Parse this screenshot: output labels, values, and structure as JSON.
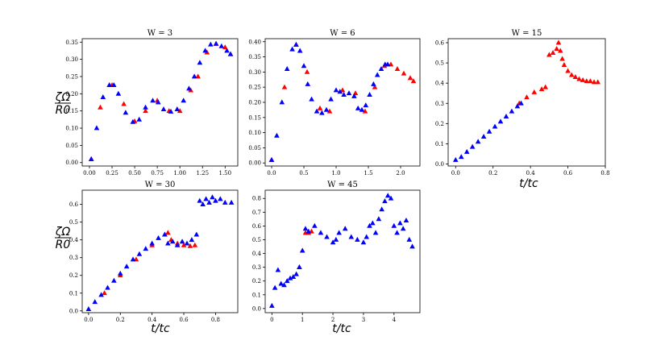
{
  "figure": {
    "ylabel_num": "ζΩ",
    "ylabel_den": "R0",
    "xlabel": "t/tc"
  },
  "chart_data": [
    {
      "type": "scatter",
      "title": "W = 3",
      "xlim": [
        -0.08,
        1.64
      ],
      "ylim": [
        -0.01,
        0.36
      ],
      "xticks": [
        0.0,
        0.25,
        0.5,
        0.75,
        1.0,
        1.25,
        1.5
      ],
      "xtick_labels": [
        "0.00",
        "0.25",
        "0.50",
        "0.75",
        "1.00",
        "1.25",
        "1.50"
      ],
      "yticks": [
        0.0,
        0.05,
        0.1,
        0.15,
        0.2,
        0.25,
        0.3,
        0.35
      ],
      "ytick_labels": [
        "0.00",
        "0.05",
        "0.10",
        "0.15",
        "0.20",
        "0.25",
        "0.30",
        "0.35"
      ],
      "series": [
        {
          "color": "#ff0000",
          "marker": "triangle",
          "x": [
            0.02,
            0.12,
            0.25,
            0.38,
            0.5,
            0.62,
            0.75,
            0.88,
            1.0,
            1.12,
            1.2,
            1.3,
            1.4,
            1.5,
            1.56
          ],
          "y": [
            0.01,
            0.16,
            0.225,
            0.17,
            0.12,
            0.15,
            0.18,
            0.15,
            0.15,
            0.21,
            0.25,
            0.32,
            0.345,
            0.335,
            0.315
          ]
        },
        {
          "color": "#0000ff",
          "marker": "triangle",
          "x": [
            0.02,
            0.08,
            0.15,
            0.22,
            0.27,
            0.32,
            0.4,
            0.48,
            0.55,
            0.62,
            0.7,
            0.76,
            0.82,
            0.9,
            0.97,
            1.04,
            1.1,
            1.16,
            1.22,
            1.28,
            1.34,
            1.4,
            1.46,
            1.52,
            1.56
          ],
          "y": [
            0.01,
            0.1,
            0.19,
            0.225,
            0.225,
            0.2,
            0.145,
            0.118,
            0.125,
            0.16,
            0.18,
            0.175,
            0.155,
            0.148,
            0.155,
            0.18,
            0.215,
            0.25,
            0.29,
            0.325,
            0.343,
            0.345,
            0.338,
            0.325,
            0.315
          ]
        }
      ]
    },
    {
      "type": "scatter",
      "title": "W = 6",
      "xlim": [
        -0.1,
        2.3
      ],
      "ylim": [
        -0.01,
        0.41
      ],
      "xticks": [
        0.0,
        0.5,
        1.0,
        1.5,
        2.0
      ],
      "xtick_labels": [
        "0.0",
        "0.5",
        "1.0",
        "1.5",
        "2.0"
      ],
      "yticks": [
        0.0,
        0.05,
        0.1,
        0.15,
        0.2,
        0.25,
        0.3,
        0.35,
        0.4
      ],
      "ytick_labels": [
        "0.00",
        "0.05",
        "0.10",
        "0.15",
        "0.20",
        "0.25",
        "0.30",
        "0.35",
        "0.40"
      ],
      "series": [
        {
          "color": "#ff0000",
          "marker": "triangle",
          "x": [
            0.0,
            0.2,
            0.38,
            0.55,
            0.75,
            0.9,
            1.1,
            1.3,
            1.45,
            1.6,
            1.75,
            1.85,
            1.95,
            2.05,
            2.15,
            2.2
          ],
          "y": [
            0.01,
            0.25,
            0.39,
            0.3,
            0.18,
            0.17,
            0.24,
            0.23,
            0.17,
            0.25,
            0.32,
            0.325,
            0.31,
            0.295,
            0.28,
            0.27
          ]
        },
        {
          "color": "#0000ff",
          "marker": "triangle",
          "x": [
            0.0,
            0.08,
            0.16,
            0.24,
            0.32,
            0.38,
            0.44,
            0.5,
            0.56,
            0.62,
            0.7,
            0.78,
            0.85,
            0.92,
            1.0,
            1.06,
            1.12,
            1.2,
            1.28,
            1.34,
            1.4,
            1.46,
            1.52,
            1.58,
            1.64,
            1.7,
            1.76,
            1.8
          ],
          "y": [
            0.01,
            0.09,
            0.2,
            0.31,
            0.375,
            0.39,
            0.37,
            0.32,
            0.26,
            0.21,
            0.17,
            0.165,
            0.175,
            0.21,
            0.24,
            0.235,
            0.225,
            0.23,
            0.22,
            0.18,
            0.175,
            0.19,
            0.225,
            0.26,
            0.29,
            0.31,
            0.325,
            0.325
          ]
        }
      ]
    },
    {
      "type": "scatter",
      "title": "W = 15",
      "xlim": [
        -0.04,
        0.8
      ],
      "ylim": [
        -0.01,
        0.62
      ],
      "xticks": [
        0.0,
        0.2,
        0.4,
        0.6,
        0.8
      ],
      "xtick_labels": [
        "0.0",
        "0.2",
        "0.4",
        "0.6",
        "0.8"
      ],
      "yticks": [
        0.0,
        0.1,
        0.2,
        0.3,
        0.4,
        0.5,
        0.6
      ],
      "ytick_labels": [
        "0.0",
        "0.1",
        "0.2",
        "0.3",
        "0.4",
        "0.5",
        "0.6"
      ],
      "series": [
        {
          "color": "#ff0000",
          "marker": "triangle",
          "x": [
            0.34,
            0.38,
            0.42,
            0.46,
            0.48,
            0.5,
            0.52,
            0.54,
            0.55,
            0.56,
            0.57,
            0.58,
            0.6,
            0.62,
            0.64,
            0.66,
            0.68,
            0.7,
            0.72,
            0.74,
            0.76
          ],
          "y": [
            0.3,
            0.33,
            0.355,
            0.37,
            0.38,
            0.54,
            0.55,
            0.57,
            0.6,
            0.56,
            0.52,
            0.49,
            0.46,
            0.44,
            0.43,
            0.42,
            0.415,
            0.41,
            0.41,
            0.405,
            0.405
          ]
        },
        {
          "color": "#0000ff",
          "marker": "triangle",
          "x": [
            0.0,
            0.03,
            0.06,
            0.09,
            0.12,
            0.15,
            0.18,
            0.21,
            0.24,
            0.27,
            0.3,
            0.33,
            0.35
          ],
          "y": [
            0.02,
            0.035,
            0.06,
            0.085,
            0.11,
            0.135,
            0.16,
            0.185,
            0.21,
            0.235,
            0.26,
            0.285,
            0.3
          ]
        }
      ]
    },
    {
      "type": "scatter",
      "title": "W = 30",
      "xlim": [
        -0.04,
        0.94
      ],
      "ylim": [
        -0.01,
        0.68
      ],
      "xticks": [
        0.0,
        0.2,
        0.4,
        0.6,
        0.8
      ],
      "xtick_labels": [
        "0.0",
        "0.2",
        "0.4",
        "0.6",
        "0.8"
      ],
      "yticks": [
        0.0,
        0.1,
        0.2,
        0.3,
        0.4,
        0.5,
        0.6
      ],
      "ytick_labels": [
        "0.0",
        "0.1",
        "0.2",
        "0.3",
        "0.4",
        "0.5",
        "0.6"
      ],
      "series": [
        {
          "color": "#ff0000",
          "marker": "triangle",
          "x": [
            0.1,
            0.2,
            0.3,
            0.4,
            0.48,
            0.5,
            0.52,
            0.56,
            0.6,
            0.64,
            0.67
          ],
          "y": [
            0.1,
            0.2,
            0.29,
            0.37,
            0.43,
            0.44,
            0.4,
            0.38,
            0.37,
            0.365,
            0.37
          ]
        },
        {
          "color": "#0000ff",
          "marker": "triangle",
          "x": [
            0.0,
            0.04,
            0.08,
            0.12,
            0.16,
            0.2,
            0.24,
            0.28,
            0.32,
            0.36,
            0.4,
            0.44,
            0.48,
            0.5,
            0.53,
            0.56,
            0.59,
            0.62,
            0.65,
            0.68,
            0.7,
            0.72,
            0.74,
            0.76,
            0.78,
            0.8,
            0.83,
            0.86,
            0.9
          ],
          "y": [
            0.01,
            0.05,
            0.09,
            0.13,
            0.17,
            0.21,
            0.25,
            0.29,
            0.32,
            0.35,
            0.38,
            0.41,
            0.43,
            0.38,
            0.39,
            0.37,
            0.39,
            0.38,
            0.4,
            0.43,
            0.62,
            0.6,
            0.63,
            0.61,
            0.64,
            0.62,
            0.63,
            0.61,
            0.61
          ]
        }
      ]
    },
    {
      "type": "scatter",
      "title": "W = 45",
      "xlim": [
        -0.22,
        4.85
      ],
      "ylim": [
        -0.03,
        0.86
      ],
      "xticks": [
        0,
        1,
        2,
        3,
        4
      ],
      "xtick_labels": [
        "0",
        "1",
        "2",
        "3",
        "4"
      ],
      "yticks": [
        0.0,
        0.1,
        0.2,
        0.3,
        0.4,
        0.5,
        0.6,
        0.7,
        0.8
      ],
      "ytick_labels": [
        "0.0",
        "0.1",
        "0.2",
        "0.3",
        "0.4",
        "0.5",
        "0.6",
        "0.7",
        "0.8"
      ],
      "series": [
        {
          "color": "#ff0000",
          "marker": "triangle",
          "x": [
            0.9,
            1.0,
            1.1,
            1.2,
            1.3
          ],
          "y": [
            0.3,
            0.42,
            0.55,
            0.55,
            0.56
          ]
        },
        {
          "color": "#0000ff",
          "marker": "triangle",
          "x": [
            0.0,
            0.1,
            0.2,
            0.3,
            0.4,
            0.5,
            0.6,
            0.7,
            0.8,
            0.9,
            1.0,
            1.1,
            1.2,
            1.4,
            1.6,
            1.8,
            2.0,
            2.1,
            2.2,
            2.4,
            2.6,
            2.8,
            3.0,
            3.1,
            3.2,
            3.3,
            3.4,
            3.5,
            3.6,
            3.7,
            3.8,
            3.9,
            4.0,
            4.1,
            4.2,
            4.3,
            4.4,
            4.5,
            4.6
          ],
          "y": [
            0.02,
            0.15,
            0.28,
            0.18,
            0.17,
            0.2,
            0.22,
            0.23,
            0.25,
            0.3,
            0.42,
            0.58,
            0.56,
            0.6,
            0.55,
            0.52,
            0.48,
            0.5,
            0.55,
            0.58,
            0.52,
            0.5,
            0.48,
            0.52,
            0.6,
            0.62,
            0.55,
            0.65,
            0.72,
            0.78,
            0.82,
            0.8,
            0.6,
            0.55,
            0.62,
            0.58,
            0.64,
            0.5,
            0.45
          ]
        }
      ]
    }
  ]
}
